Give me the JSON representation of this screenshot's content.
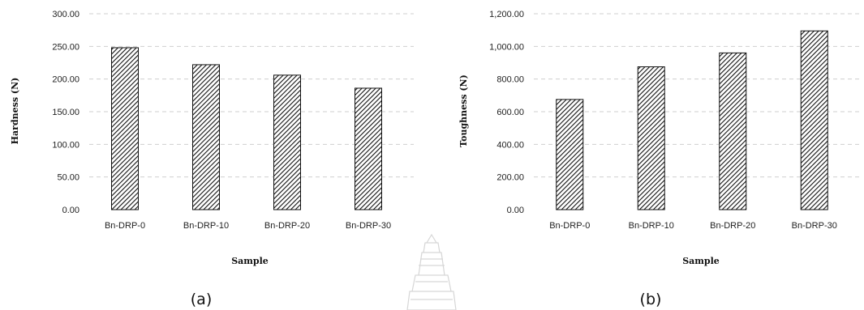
{
  "chart_data": [
    {
      "type": "bar",
      "panel_label": "(a)",
      "categories": [
        "Bn-DRP-0",
        "Bn-DRP-10",
        "Bn-DRP-20",
        "Bn-DRP-30"
      ],
      "values": [
        248,
        222,
        206,
        186
      ],
      "xlabel": "Sample",
      "ylabel": "Hardness (N)",
      "ylim": [
        0,
        300
      ],
      "yticks": [
        "0.00",
        "50.00",
        "100.00",
        "150.00",
        "200.00",
        "250.00",
        "300.00"
      ],
      "grid": true,
      "bar_pattern": "diagonal-hatch",
      "colors": {
        "bar": "#111111",
        "grid": "#cfcfcf"
      }
    },
    {
      "type": "bar",
      "panel_label": "(b)",
      "categories": [
        "Bn-DRP-0",
        "Bn-DRP-10",
        "Bn-DRP-20",
        "Bn-DRP-30"
      ],
      "values": [
        675,
        875,
        960,
        1095
      ],
      "xlabel": "Sample",
      "ylabel": "Toughness (N)",
      "ylim": [
        0,
        1200
      ],
      "yticks": [
        "0.00",
        "200.00",
        "400.00",
        "600.00",
        "800.00",
        "1,000.00",
        "1,200.00"
      ],
      "grid": true,
      "bar_pattern": "diagonal-hatch",
      "colors": {
        "bar": "#111111",
        "grid": "#cfcfcf"
      }
    }
  ]
}
